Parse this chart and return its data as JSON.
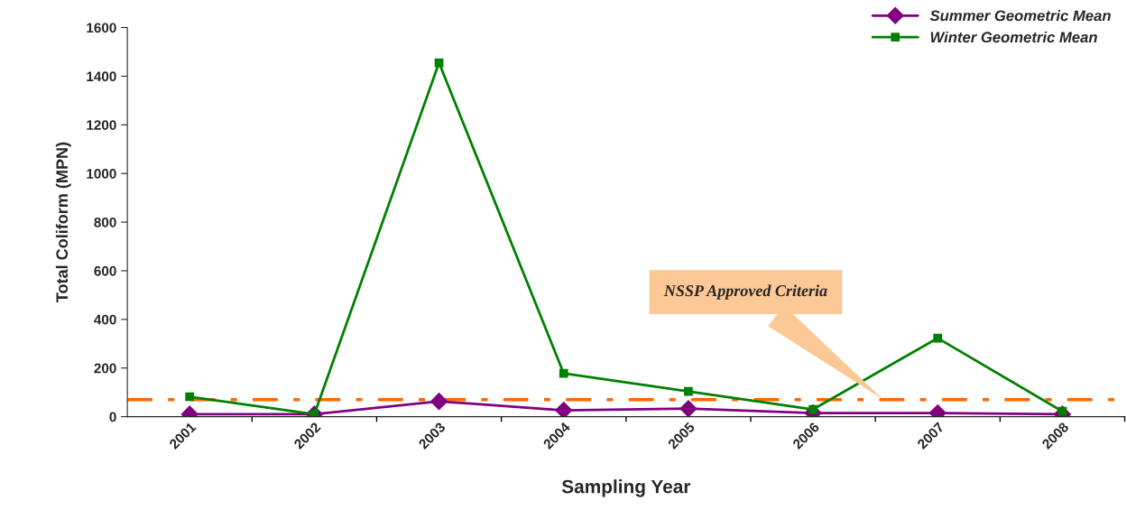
{
  "chart_data": {
    "type": "line",
    "xlabel": "Sampling Year",
    "ylabel": "Total Coliform (MPN)",
    "categories": [
      "2001",
      "2002",
      "2003",
      "2004",
      "2005",
      "2006",
      "2007",
      "2008"
    ],
    "series": [
      {
        "name": "Summer Geometric Mean",
        "color": "#800080",
        "marker": "diamond",
        "values": [
          10,
          10,
          63,
          26,
          33,
          15,
          15,
          10
        ]
      },
      {
        "name": "Winter Geometric Mean",
        "color": "#008000",
        "marker": "square",
        "values": [
          82,
          10,
          1455,
          178,
          104,
          30,
          323,
          22
        ]
      }
    ],
    "ylim": [
      0,
      1600
    ],
    "yticks": [
      0,
      200,
      400,
      600,
      800,
      1000,
      1200,
      1400,
      1600
    ],
    "ref_lines": [
      {
        "axis": "y",
        "value": 70,
        "color": "#ff6600",
        "line_style": "dashed"
      }
    ],
    "annotations": [
      "NSSP Approved Criteria"
    ],
    "grid": false,
    "legend": "top right"
  }
}
